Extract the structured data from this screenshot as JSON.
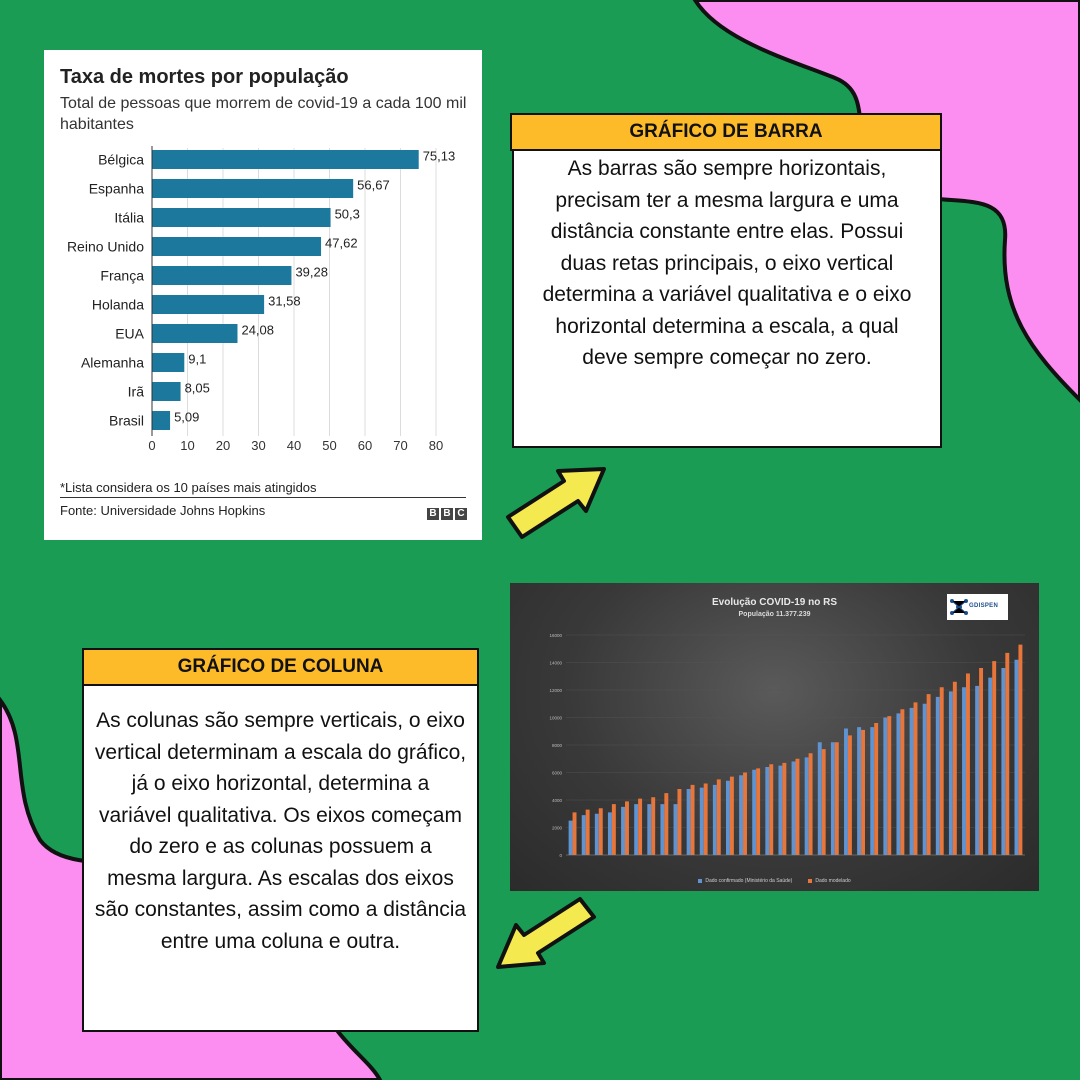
{
  "bar_chart": {
    "title": "Taxa de mortes por população",
    "subtitle": "Total de pessoas que morrem de covid-19 a cada 100 mil habitantes",
    "note": "*Lista considera os 10 países mais atingidos",
    "source": "Fonte: Universidade Johns Hopkins",
    "logo_letters": [
      "B",
      "B",
      "C"
    ]
  },
  "column_chart": {
    "title": "Evolução COVID-19 no RS",
    "subtitle": "População 11.377.239",
    "logo_text": "GDISPEN",
    "y_tick_labels": [
      "0",
      "2000",
      "4000",
      "6000",
      "8000",
      "10000",
      "12000",
      "14000",
      "16000"
    ],
    "legend": [
      "Dado confirmado (Ministério da Saúde)",
      "Dado modelado"
    ]
  },
  "panels": {
    "bar": {
      "header": "GRÁFICO DE BARRA",
      "text": "As barras são sempre horizontais, precisam ter a mesma largura e uma distância constante entre elas. Possui duas retas principais, o eixo vertical determina a variável qualitativa  e o eixo horizontal determina a escala, a qual deve sempre começar no zero."
    },
    "column": {
      "header": "GRÁFICO DE COLUNA",
      "text": "As colunas são sempre verticais, o eixo vertical determinam a escala do gráfico, já o eixo horizontal, determina a variável qualitativa. Os eixos começam do zero e as colunas possuem a mesma largura.  As escalas dos eixos são constantes, assim como a distância entre uma coluna e outra."
    }
  },
  "colors": {
    "background": "#1a9c55",
    "pink": "#fb8ef0",
    "header_fill": "#fdbb2a",
    "arrow": "#f4ea50",
    "bar_fill": "#1c789c",
    "confirmed": "#5f93d2",
    "modeled": "#e8763a"
  },
  "chart_data": [
    {
      "type": "bar",
      "title": "Taxa de mortes por população",
      "subtitle": "Total de pessoas que morrem de covid-19 a cada 100 mil habitantes",
      "categories": [
        "Bélgica",
        "Espanha",
        "Itália",
        "Reino Unido",
        "França",
        "Holanda",
        "EUA",
        "Alemanha",
        "Irã",
        "Brasil"
      ],
      "values": [
        75.13,
        56.67,
        50.3,
        47.62,
        39.28,
        31.58,
        24.08,
        9.1,
        8.05,
        5.09
      ],
      "value_labels": [
        "75,13",
        "56,67",
        "50,3",
        "47,62",
        "39,28",
        "31,58",
        "24,08",
        "9,1",
        "8,05",
        "5,09"
      ],
      "orientation": "horizontal",
      "xlim": [
        0,
        80
      ],
      "xticks": [
        0,
        10,
        20,
        30,
        40,
        50,
        60,
        70,
        80
      ],
      "grid": "vertical"
    },
    {
      "type": "bar",
      "title": "Evolução COVID-19 no RS",
      "subtitle": "População 11.377.239",
      "ylim": [
        0,
        16000
      ],
      "yticks": [
        0,
        2000,
        4000,
        6000,
        8000,
        10000,
        12000,
        14000,
        16000
      ],
      "series": [
        {
          "name": "Dado confirmado (Ministério da Saúde)",
          "values": [
            2500,
            2900,
            3000,
            3100,
            3500,
            3700,
            3700,
            3700,
            3700,
            4800,
            4900,
            5100,
            5400,
            5800,
            6200,
            6400,
            6500,
            6800,
            7100,
            8200,
            8200,
            9200,
            9300,
            9300,
            10000,
            10300,
            10700,
            11000,
            11500,
            11900,
            12200,
            12300,
            12900,
            13600,
            14200
          ]
        },
        {
          "name": "Dado modelado",
          "values": [
            3100,
            3300,
            3400,
            3700,
            3900,
            4100,
            4200,
            4500,
            4800,
            5100,
            5200,
            5500,
            5700,
            6000,
            6300,
            6600,
            6700,
            7000,
            7400,
            7700,
            8200,
            8700,
            9100,
            9600,
            10100,
            10600,
            11100,
            11700,
            12200,
            12600,
            13200,
            13600,
            14100,
            14700,
            15300
          ]
        }
      ]
    }
  ]
}
